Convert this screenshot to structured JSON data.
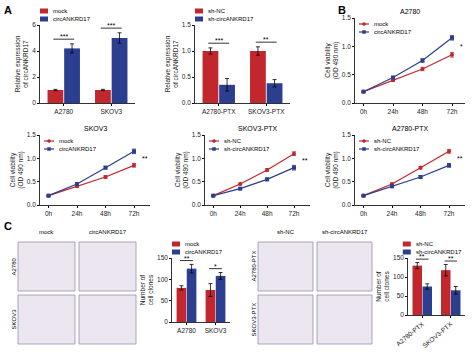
{
  "panels": [
    "A",
    "B",
    "C"
  ],
  "chart_data": [
    {
      "type": "bar",
      "panel": "A",
      "categories": [
        "A2780",
        "SKOV3"
      ],
      "y_label": "Relative expression of circANKRD17",
      "ylim": [
        0,
        6
      ],
      "yticks": [
        0,
        2,
        4,
        6
      ],
      "grid": false,
      "legend": "top",
      "series": [
        {
          "name": "mock",
          "color": "#c1272d",
          "values": [
            1,
            1
          ],
          "errors": [
            0.05,
            0.05
          ]
        },
        {
          "name": "circANKRD17",
          "color": "#2c3e8f",
          "values": [
            4.2,
            5.0
          ],
          "errors": [
            0.35,
            0.4
          ]
        }
      ],
      "significance": [
        "***",
        "***"
      ]
    },
    {
      "type": "bar",
      "panel": "A",
      "categories": [
        "A2780-PTX",
        "SKOV3-PTX"
      ],
      "y_label": "Relative expression of circANKRD17",
      "ylim": [
        0,
        1.5
      ],
      "yticks": [
        {
          "value": 0,
          "label": "0.0"
        },
        {
          "value": 0.5,
          "label": "0.5"
        },
        {
          "value": 1,
          "label": "1.0"
        },
        {
          "value": 1.5,
          "label": "1.5"
        }
      ],
      "grid": false,
      "legend": "top",
      "series": [
        {
          "name": "sh-NC",
          "color": "#c1272d",
          "values": [
            1,
            1
          ],
          "errors": [
            0.06,
            0.08
          ]
        },
        {
          "name": "sh-circANKRD17",
          "color": "#2c3e8f",
          "values": [
            0.35,
            0.38
          ],
          "errors": [
            0.12,
            0.07
          ]
        }
      ],
      "significance": [
        "***",
        "**"
      ]
    },
    {
      "type": "line",
      "panel": "B",
      "title": "A2780",
      "categories": [
        "0h",
        "24h",
        "48h",
        "72h"
      ],
      "y_label": "Cell viability (OD 490 nm)",
      "ylim": [
        0,
        1.5
      ],
      "yticks": [
        {
          "value": 0,
          "label": "0.0"
        },
        {
          "value": 0.5,
          "label": "0.5"
        },
        {
          "value": 1,
          "label": "1.0"
        },
        {
          "value": 1.5,
          "label": "1.5"
        }
      ],
      "grid": false,
      "legend": "top left",
      "series": [
        {
          "name": "mock",
          "color": "#c1272d",
          "marker": "circle",
          "line_style": "solid",
          "values": [
            0.2,
            0.4,
            0.6,
            0.85
          ],
          "errors": [
            0.01,
            0.02,
            0.03,
            0.04
          ]
        },
        {
          "name": "circANKRD17",
          "color": "#2c3e8f",
          "marker": "square",
          "line_style": "solid",
          "values": [
            0.2,
            0.45,
            0.75,
            1.15
          ],
          "errors": [
            0.01,
            0.02,
            0.03,
            0.04
          ]
        }
      ],
      "significance": "*"
    },
    {
      "type": "line",
      "panel": "B",
      "title": "SKOV3",
      "categories": [
        "0h",
        "24h",
        "48h",
        "72h"
      ],
      "y_label": "Cell viability (OD 490 nm)",
      "ylim": [
        0,
        1.5
      ],
      "yticks": [
        {
          "value": 0,
          "label": "0.0"
        },
        {
          "value": 0.5,
          "label": "0.5"
        },
        {
          "value": 1,
          "label": "1.0"
        },
        {
          "value": 1.5,
          "label": "1.5"
        }
      ],
      "grid": false,
      "legend": "top left",
      "series": [
        {
          "name": "mock",
          "color": "#c1272d",
          "marker": "circle",
          "line_style": "solid",
          "values": [
            0.2,
            0.4,
            0.6,
            0.85
          ],
          "errors": [
            0.01,
            0.02,
            0.03,
            0.04
          ]
        },
        {
          "name": "circANKRD17",
          "color": "#2c3e8f",
          "marker": "square",
          "line_style": "solid",
          "values": [
            0.2,
            0.45,
            0.8,
            1.15
          ],
          "errors": [
            0.01,
            0.02,
            0.03,
            0.05
          ]
        }
      ],
      "significance": "**"
    },
    {
      "type": "line",
      "panel": "B",
      "title": "SKOV3-PTX",
      "categories": [
        "0h",
        "24h",
        "48h",
        "72h"
      ],
      "y_label": "Cell viability (OD 490 nm)",
      "ylim": [
        0,
        1.5
      ],
      "yticks": [
        {
          "value": 0,
          "label": "0.0"
        },
        {
          "value": 0.5,
          "label": "0.5"
        },
        {
          "value": 1,
          "label": "1.0"
        },
        {
          "value": 1.5,
          "label": "1.5"
        }
      ],
      "grid": false,
      "legend": "top left",
      "series": [
        {
          "name": "sh-NC",
          "color": "#c1272d",
          "marker": "circle",
          "line_style": "solid",
          "values": [
            0.2,
            0.45,
            0.75,
            1.1
          ],
          "errors": [
            0.01,
            0.02,
            0.03,
            0.04
          ]
        },
        {
          "name": "sh-circANKRD17",
          "color": "#2c3e8f",
          "marker": "square",
          "line_style": "solid",
          "values": [
            0.2,
            0.35,
            0.55,
            0.8
          ],
          "errors": [
            0.01,
            0.02,
            0.03,
            0.05
          ]
        }
      ],
      "significance": "**"
    },
    {
      "type": "line",
      "panel": "B",
      "title": "A2780-PTX",
      "categories": [
        "0h",
        "24h",
        "48h",
        "72h"
      ],
      "y_label": "Cell viability (OD 490 nm)",
      "ylim": [
        0,
        1.5
      ],
      "yticks": [
        {
          "value": 0,
          "label": "0.0"
        },
        {
          "value": 0.5,
          "label": "0.5"
        },
        {
          "value": 1,
          "label": "1.0"
        },
        {
          "value": 1.5,
          "label": "1.5"
        }
      ],
      "grid": false,
      "legend": "top left",
      "series": [
        {
          "name": "sh-NC",
          "color": "#c1272d",
          "marker": "circle",
          "line_style": "solid",
          "values": [
            0.2,
            0.45,
            0.8,
            1.15
          ],
          "errors": [
            0.01,
            0.02,
            0.03,
            0.04
          ]
        },
        {
          "name": "sh-circANKRD17",
          "color": "#2c3e8f",
          "marker": "square",
          "line_style": "solid",
          "values": [
            0.2,
            0.4,
            0.6,
            0.85
          ],
          "errors": [
            0.01,
            0.02,
            0.03,
            0.04
          ]
        }
      ],
      "significance": "**"
    },
    {
      "type": "bar",
      "panel": "C",
      "categories": [
        "A2780",
        "SKOV3"
      ],
      "y_label": "Number of cell clones",
      "ylim": [
        0,
        150
      ],
      "yticks": [
        0,
        50,
        100,
        150
      ],
      "grid": false,
      "legend": "top",
      "series": [
        {
          "name": "mock",
          "color": "#c1272d",
          "values": [
            80,
            75
          ],
          "errors": [
            5,
            15
          ]
        },
        {
          "name": "circANKRD17",
          "color": "#2c3e8f",
          "values": [
            125,
            108
          ],
          "errors": [
            10,
            8
          ]
        }
      ],
      "significance": [
        "**",
        "*"
      ]
    },
    {
      "type": "bar",
      "panel": "C",
      "categories": [
        "A2780-PTX",
        "SKOV3-PTX"
      ],
      "y_label": "Number of cell clones",
      "ylim": [
        0,
        150
      ],
      "yticks": [
        0,
        50,
        100,
        150
      ],
      "grid": false,
      "legend": "top",
      "series": [
        {
          "name": "sh-NC",
          "color": "#c1272d",
          "values": [
            130,
            118
          ],
          "errors": [
            8,
            15
          ]
        },
        {
          "name": "sh-circANKRD17",
          "color": "#2c3e8f",
          "values": [
            75,
            65
          ],
          "errors": [
            7,
            10
          ]
        }
      ],
      "significance": [
        "**",
        "**"
      ]
    }
  ],
  "images": [
    {
      "type": "image",
      "panel": "C",
      "columns": [
        "mock",
        "circANKRD17"
      ],
      "rows": [
        "A2780",
        "SKOV3"
      ]
    },
    {
      "type": "image",
      "panel": "C",
      "columns": [
        "sh-NC",
        "sh-circANKRD17"
      ],
      "rows": [
        "A2780-PTX",
        "SKOV3-PTX"
      ]
    }
  ]
}
